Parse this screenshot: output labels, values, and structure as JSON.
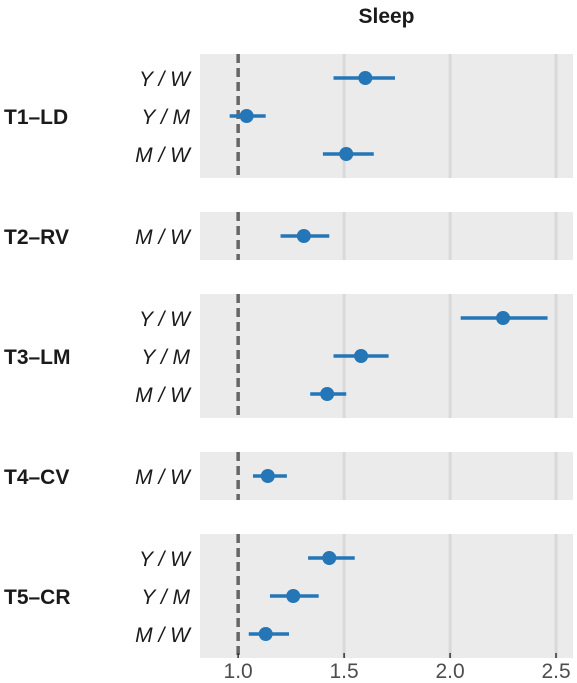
{
  "chart_data": {
    "type": "forest",
    "title": "Sleep",
    "xlim": [
      0.82,
      2.58
    ],
    "reference_line": 1.0,
    "x_ticks": [
      {
        "value": 1.0,
        "label": "1.0"
      },
      {
        "value": 1.5,
        "label": "1.5"
      },
      {
        "value": 2.0,
        "label": "2.0"
      },
      {
        "value": 2.5,
        "label": "2.5"
      }
    ],
    "groups": [
      {
        "label": "T1–LD",
        "rows": [
          {
            "label": "Y / W",
            "estimate": 1.6,
            "lower": 1.45,
            "upper": 1.74
          },
          {
            "label": "Y / M",
            "estimate": 1.04,
            "lower": 0.96,
            "upper": 1.13
          },
          {
            "label": "M / W",
            "estimate": 1.51,
            "lower": 1.4,
            "upper": 1.64
          }
        ]
      },
      {
        "label": "T2–RV",
        "rows": [
          {
            "label": "M / W",
            "estimate": 1.31,
            "lower": 1.2,
            "upper": 1.43
          }
        ]
      },
      {
        "label": "T3–LM",
        "rows": [
          {
            "label": "Y / W",
            "estimate": 2.25,
            "lower": 2.05,
            "upper": 2.46
          },
          {
            "label": "Y / M",
            "estimate": 1.58,
            "lower": 1.45,
            "upper": 1.71
          },
          {
            "label": "M / W",
            "estimate": 1.42,
            "lower": 1.34,
            "upper": 1.51
          }
        ]
      },
      {
        "label": "T4–CV",
        "rows": [
          {
            "label": "M / W",
            "estimate": 1.14,
            "lower": 1.07,
            "upper": 1.23
          }
        ]
      },
      {
        "label": "T5–CR",
        "rows": [
          {
            "label": "Y / W",
            "estimate": 1.43,
            "lower": 1.33,
            "upper": 1.55
          },
          {
            "label": "Y / M",
            "estimate": 1.26,
            "lower": 1.15,
            "upper": 1.38
          },
          {
            "label": "M / W",
            "estimate": 1.13,
            "lower": 1.05,
            "upper": 1.24
          }
        ]
      }
    ],
    "colors": {
      "point": "#2476b6",
      "panel": "#ebebeb",
      "grid": "#d9d9d9",
      "reference": "#666666"
    }
  }
}
